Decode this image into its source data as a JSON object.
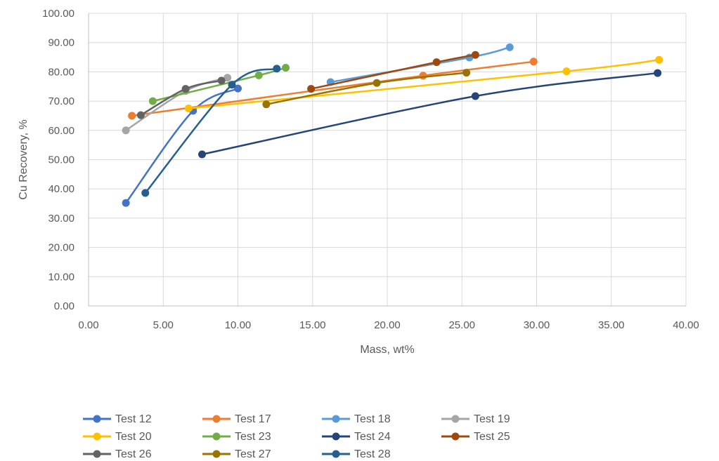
{
  "chart_data": {
    "type": "scatter",
    "title": "",
    "xlabel": "Mass, wt%",
    "ylabel": "Cu Recovery, %",
    "xlim": [
      0,
      40
    ],
    "ylim": [
      0,
      100
    ],
    "x_ticks": [
      "0.00",
      "5.00",
      "10.00",
      "15.00",
      "20.00",
      "25.00",
      "30.00",
      "35.00",
      "40.00"
    ],
    "y_ticks": [
      "0.00",
      "10.00",
      "20.00",
      "30.00",
      "40.00",
      "50.00",
      "60.00",
      "70.00",
      "80.00",
      "90.00",
      "100.00"
    ],
    "grid": true,
    "legend_position": "bottom",
    "series": [
      {
        "name": "Test 12",
        "color": "#4472C4",
        "points": [
          [
            2.5,
            35.2
          ],
          [
            7.0,
            66.7
          ],
          [
            10.0,
            74.3
          ]
        ]
      },
      {
        "name": "Test 17",
        "color": "#ED7D31",
        "points": [
          [
            2.9,
            65.0
          ],
          [
            22.4,
            78.7
          ],
          [
            29.8,
            83.5
          ]
        ]
      },
      {
        "name": "Test 18",
        "color": "#5B9BD5",
        "points": [
          [
            16.2,
            76.5
          ],
          [
            25.5,
            84.9
          ],
          [
            28.2,
            88.4
          ]
        ]
      },
      {
        "name": "Test 19",
        "color": "#A5A5A5",
        "points": [
          [
            2.5,
            60.0
          ],
          [
            6.5,
            73.5
          ],
          [
            9.3,
            78.0
          ]
        ]
      },
      {
        "name": "Test 20",
        "color": "#FFC000",
        "points": [
          [
            6.7,
            67.5
          ],
          [
            32.0,
            80.2
          ],
          [
            38.2,
            84.1
          ]
        ]
      },
      {
        "name": "Test 23",
        "color": "#70AD47",
        "points": [
          [
            4.3,
            70.0
          ],
          [
            11.4,
            78.8
          ],
          [
            13.2,
            81.4
          ]
        ]
      },
      {
        "name": "Test 24",
        "color": "#264478",
        "points": [
          [
            7.6,
            51.8
          ],
          [
            25.9,
            71.7
          ],
          [
            38.1,
            79.6
          ]
        ]
      },
      {
        "name": "Test 25",
        "color": "#9E480E",
        "points": [
          [
            14.9,
            74.2
          ],
          [
            23.3,
            83.3
          ],
          [
            25.9,
            85.8
          ]
        ]
      },
      {
        "name": "Test 26",
        "color": "#636363",
        "points": [
          [
            3.5,
            65.2
          ],
          [
            6.5,
            74.2
          ],
          [
            8.9,
            77.0
          ]
        ]
      },
      {
        "name": "Test 27",
        "color": "#997300",
        "points": [
          [
            11.9,
            68.9
          ],
          [
            19.3,
            76.2
          ],
          [
            25.3,
            79.7
          ]
        ]
      },
      {
        "name": "Test 28",
        "color": "#255E91",
        "points": [
          [
            3.8,
            38.6
          ],
          [
            9.6,
            75.6
          ],
          [
            12.6,
            81.1
          ]
        ]
      }
    ]
  }
}
